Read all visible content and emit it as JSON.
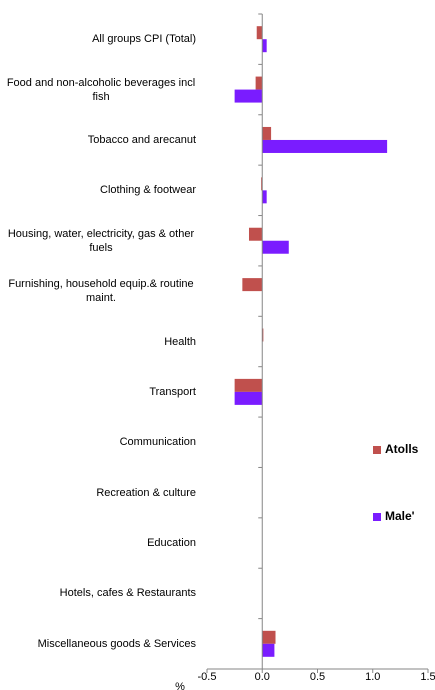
{
  "chart_data": {
    "type": "bar",
    "orientation": "horizontal",
    "x_label": "%",
    "categories": [
      "All groups CPI (Total)",
      "Food and non-alcoholic beverages incl fish",
      "Tobacco and arecanut",
      "Clothing & footwear",
      "Housing, water, electricity, gas & other fuels",
      "Furnishing, household equip.& routine maint.",
      "Health",
      "Transport",
      "Communication",
      "Recreation & culture",
      "Education",
      "Hotels, cafes & Restaurants",
      "Miscellaneous goods & Services"
    ],
    "series": [
      {
        "name": "Atolls",
        "color": "#c0504d",
        "values": [
          -0.05,
          -0.06,
          0.08,
          -0.01,
          -0.12,
          -0.18,
          0.01,
          -0.25,
          0,
          0,
          0,
          0,
          0.12
        ]
      },
      {
        "name": "Male'",
        "color": "#7a1cff",
        "values": [
          0.04,
          -0.25,
          1.13,
          0.04,
          0.24,
          0,
          0,
          -0.25,
          0,
          0,
          0,
          0,
          0.11
        ]
      }
    ],
    "xlim": [
      -0.5,
      1.5
    ],
    "xticks": [
      -0.5,
      {
        "value": 0,
        "label": "0.0"
      },
      0.5,
      {
        "value": 1,
        "label": "1.0"
      },
      1.5
    ],
    "grid": false,
    "legend": "right"
  }
}
